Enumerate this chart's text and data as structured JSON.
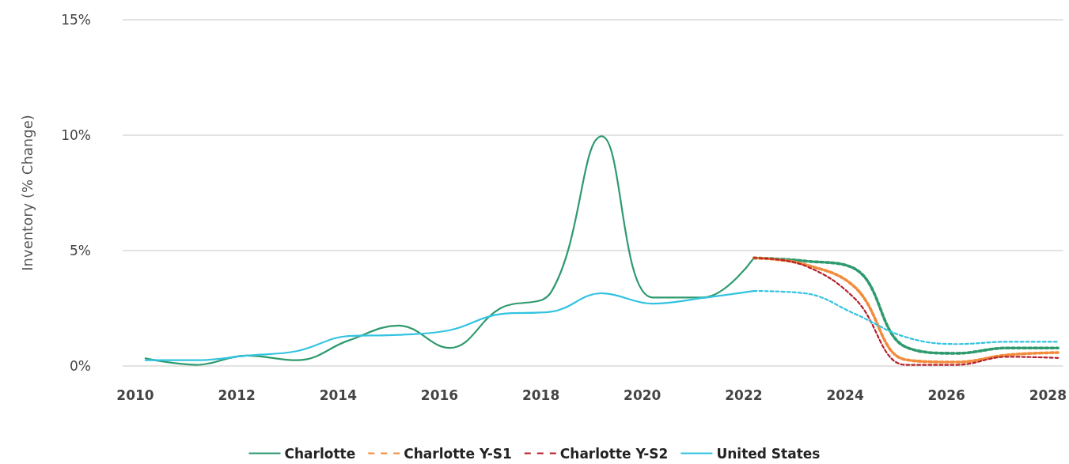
{
  "chart_data": {
    "type": "line",
    "ylabel": "Inventory (% Change)",
    "xlim": [
      2009.75,
      2028.3
    ],
    "xticks": [
      2010,
      2012,
      2014,
      2016,
      2018,
      2020,
      2022,
      2024,
      2026,
      2028
    ],
    "ylim": [
      0,
      15
    ],
    "yticks": [
      {
        "value": 0,
        "label": "0%"
      },
      {
        "value": 5,
        "label": "5%"
      },
      {
        "value": 10,
        "label": "10%"
      },
      {
        "value": 15,
        "label": "15%"
      }
    ],
    "grid": "y",
    "legend": "bottom",
    "marker": "none",
    "series": [
      {
        "name": "Charlotte",
        "color": "#2e9a6e",
        "line_style": "solid",
        "x": [
          2010.2,
          2011.2,
          2012.2,
          2013.2,
          2014.2,
          2015.2,
          2016.2,
          2017.2,
          2018.2,
          2019.2,
          2020.2,
          2021.2,
          2022.2
        ],
        "values": [
          0.33,
          0.05,
          0.45,
          0.25,
          1.1,
          1.75,
          0.78,
          2.5,
          3.2,
          9.95,
          2.97,
          2.97,
          4.68
        ]
      },
      {
        "color": "#2e9a6e",
        "line_style": "dashed",
        "x": [
          2022.2,
          2023.2,
          2024.2,
          2025.2,
          2026.2,
          2027.2,
          2028.2
        ],
        "values": [
          4.68,
          4.55,
          4.2,
          0.82,
          0.55,
          0.78,
          0.78
        ]
      },
      {
        "name": "Charlotte Y-S1",
        "color": "#f28c3c",
        "line_style": "dashed",
        "x": [
          2022.2,
          2023.2,
          2024.2,
          2025.2,
          2026.2,
          2027.2,
          2028.2
        ],
        "values": [
          4.68,
          4.4,
          3.4,
          0.27,
          0.17,
          0.48,
          0.58
        ]
      },
      {
        "name": "Charlotte Y-S2",
        "color": "#b5202a",
        "line_style": "dashed",
        "x": [
          2022.2,
          2023.2,
          2024.2,
          2025.2,
          2026.2,
          2027.2,
          2028.2
        ],
        "values": [
          4.68,
          4.35,
          2.9,
          0.05,
          0.05,
          0.4,
          0.35
        ]
      },
      {
        "name": "United States",
        "color": "#33c3e0",
        "line_style": "solid",
        "x": [
          2010.2,
          2011.2,
          2012.2,
          2013.2,
          2014.2,
          2015.2,
          2016.2,
          2017.2,
          2018.2,
          2019.2,
          2020.2,
          2021.2,
          2022.2
        ],
        "values": [
          0.25,
          0.25,
          0.45,
          0.65,
          1.3,
          1.35,
          1.55,
          2.25,
          2.35,
          3.15,
          2.7,
          2.95,
          3.25
        ]
      },
      {
        "color": "#33c3e0",
        "line_style": "dashed",
        "x": [
          2022.2,
          2023.2,
          2024.2,
          2025.2,
          2026.2,
          2027.2,
          2028.2
        ],
        "values": [
          3.25,
          3.15,
          2.25,
          1.25,
          0.95,
          1.05,
          1.05
        ]
      }
    ]
  }
}
